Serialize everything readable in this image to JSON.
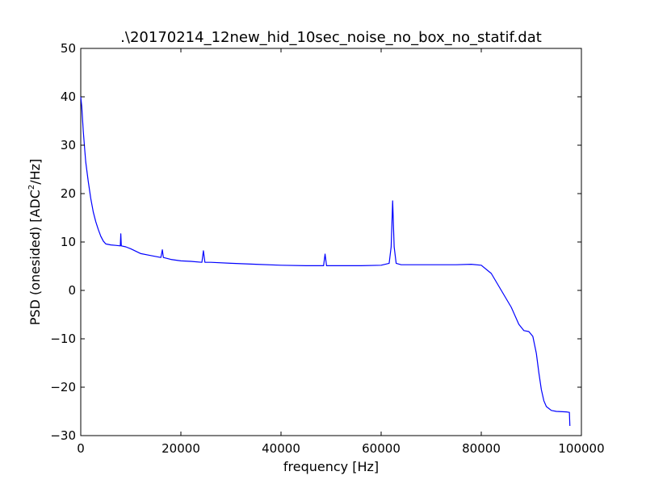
{
  "chart_data": {
    "type": "line",
    "title": ".\\20170214_12new_hid_10sec_noise_no_box_no_statif.dat",
    "xlabel": "frequency [Hz]",
    "ylabel_prefix": "PSD (onesided) [ADC",
    "ylabel_sup": "2",
    "ylabel_suffix": "/Hz]",
    "xlim": [
      0,
      100000
    ],
    "ylim": [
      -30,
      50
    ],
    "x_ticks": [
      0,
      20000,
      40000,
      60000,
      80000,
      100000
    ],
    "y_ticks": [
      -30,
      -20,
      -10,
      0,
      10,
      20,
      30,
      40,
      50
    ],
    "grid": false,
    "line_color": "#0000ff",
    "series": [
      {
        "x": [
          0,
          200,
          500,
          800,
          1000,
          1500,
          2000,
          2500,
          3000,
          3500,
          4000,
          4500,
          5000,
          6000,
          7000,
          7900,
          8000,
          8100,
          9000,
          10000,
          12000,
          14000,
          16000,
          16300,
          16500,
          18000,
          20000,
          22000,
          24200,
          24500,
          24800,
          26000,
          30000,
          35000,
          40000,
          45000,
          48500,
          48800,
          49100,
          52000,
          56000,
          60000,
          61600,
          62000,
          62300,
          62600,
          63000,
          64000,
          70000,
          75000,
          78000,
          80000,
          82000,
          84000,
          86000,
          87500,
          88500,
          89500,
          90300,
          91000,
          91500,
          92000,
          92500,
          93000,
          94000,
          95000,
          97000,
          97600,
          97700
        ],
        "y": [
          40,
          38,
          33,
          29,
          26.5,
          22.5,
          19,
          16.2,
          14.2,
          12.6,
          11.2,
          10.2,
          9.6,
          9.4,
          9.3,
          9.2,
          11.7,
          9.2,
          9.0,
          8.6,
          7.6,
          7.2,
          6.8,
          8.4,
          6.8,
          6.4,
          6.1,
          6.0,
          5.8,
          8.2,
          5.8,
          5.8,
          5.6,
          5.4,
          5.2,
          5.1,
          5.1,
          7.5,
          5.1,
          5.1,
          5.1,
          5.2,
          5.6,
          9.0,
          18.5,
          9.0,
          5.6,
          5.3,
          5.3,
          5.3,
          5.4,
          5.2,
          3.5,
          0,
          -3.5,
          -7.0,
          -8.3,
          -8.5,
          -9.5,
          -13,
          -17,
          -20.5,
          -22.8,
          -24,
          -24.8,
          -25,
          -25.1,
          -25.2,
          -28
        ]
      }
    ]
  }
}
